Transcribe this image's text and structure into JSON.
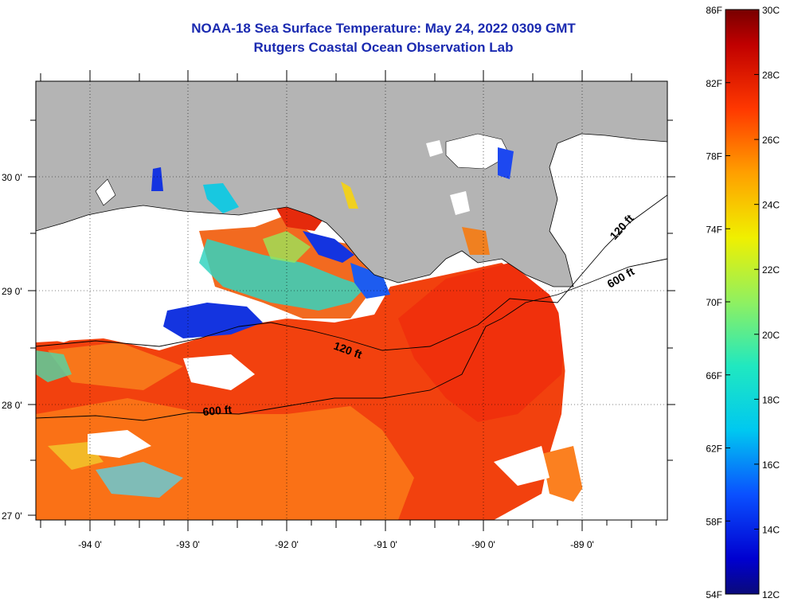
{
  "header": {
    "title": "NOAA-18 Sea Surface Temperature:  May 24, 2022 0309 GMT",
    "subtitle": "Rutgers Coastal Ocean Observation Lab"
  },
  "map": {
    "lat_labels": [
      "30 0'",
      "29 0'",
      "28 0'",
      "27 0'"
    ],
    "lon_labels": [
      "-94 0'",
      "-93 0'",
      "-92 0'",
      "-91 0'",
      "-90 0'",
      "-89 0'"
    ],
    "contour_labels": [
      "120 ft",
      "600 ft",
      "120 ft",
      "600 ft"
    ],
    "colors": {
      "land": "#b4b4b4",
      "cloud": "#ffffff",
      "water_warm": "#f23a0f"
    }
  },
  "colorbar": {
    "fahrenheit_labels": [
      "86F",
      "82F",
      "78F",
      "74F",
      "70F",
      "66F",
      "62F",
      "58F",
      "54F"
    ],
    "celsius_labels": [
      "30C",
      "28C",
      "26C",
      "24C",
      "22C",
      "20C",
      "18C",
      "16C",
      "14C",
      "12C"
    ],
    "range_f": [
      54,
      86
    ],
    "range_c": [
      12,
      30
    ]
  }
}
